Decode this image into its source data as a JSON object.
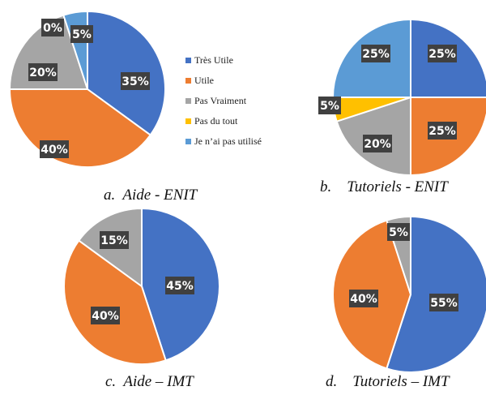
{
  "legend": [
    {
      "label": "Très Utile",
      "color": "#4472C4"
    },
    {
      "label": "Utile",
      "color": "#ED7D31"
    },
    {
      "label": "Pas Vraiment",
      "color": "#A5A5A5"
    },
    {
      "label": "Pas du tout",
      "color": "#FFC000"
    },
    {
      "label": "Je n’ai pas utilisé",
      "color": "#5B9BD5"
    }
  ],
  "chart_data": [
    {
      "type": "pie",
      "caption": "a.  Aide - ENIT",
      "categories": [
        "Très Utile",
        "Utile",
        "Pas Vraiment",
        "Pas du tout",
        "Je n’ai pas utilisé"
      ],
      "values": [
        35,
        40,
        20,
        0,
        5
      ],
      "data_labels": [
        "35%",
        "40%",
        "20%",
        "0%",
        "5%"
      ],
      "legend_position": "right"
    },
    {
      "type": "pie",
      "caption": "b.    Tutoriels - ENIT",
      "categories": [
        "Très Utile",
        "Utile",
        "Pas Vraiment",
        "Pas du tout",
        "Je n’ai pas utilisé"
      ],
      "values": [
        25,
        25,
        20,
        5,
        25
      ],
      "data_labels": [
        "25%",
        "25%",
        "20%",
        "5%",
        "25%"
      ]
    },
    {
      "type": "pie",
      "caption": "c.  Aide – IMT",
      "categories": [
        "Très Utile",
        "Utile",
        "Pas Vraiment"
      ],
      "values": [
        45,
        40,
        15
      ],
      "data_labels": [
        "45%",
        "40%",
        "15%"
      ]
    },
    {
      "type": "pie",
      "caption": "d.    Tutoriels – IMT",
      "categories": [
        "Très Utile",
        "Utile",
        "Pas Vraiment"
      ],
      "values": [
        55,
        40,
        5
      ],
      "data_labels": [
        "55%",
        "40%",
        "5%"
      ]
    }
  ]
}
